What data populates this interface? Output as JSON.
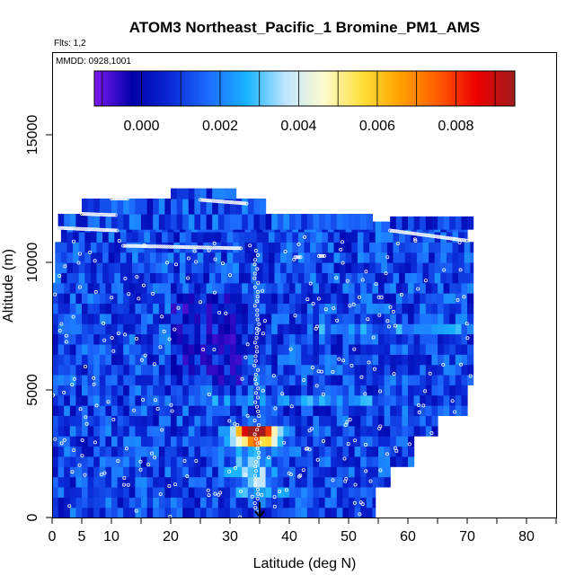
{
  "chart_data": {
    "type": "heatmap",
    "title": "ATOM3 Northeast_Pacific_1 Bromine_PM1_AMS",
    "flights_label": "Flts: 1,2",
    "dates_label": "MMDD: 0928,1001",
    "xlabel": "Latitude (deg N)",
    "ylabel": "Altitude (m)",
    "xlim": [
      0,
      85
    ],
    "ylim": [
      0,
      17000
    ],
    "x_ticks": [
      0,
      5,
      10,
      20,
      30,
      40,
      50,
      60,
      70,
      80
    ],
    "x_tick_labels": [
      "0",
      "5",
      "10",
      "20",
      "30",
      "40",
      "50",
      "60",
      "70",
      "80"
    ],
    "y_ticks": [
      0,
      5000,
      10000,
      15000
    ],
    "y_tick_labels": [
      "0",
      "5000",
      "10000",
      "15000"
    ],
    "colorbar": {
      "range": [
        -0.0012,
        0.0095
      ],
      "ticks": [
        0.0,
        0.002,
        0.004,
        0.006,
        0.008
      ],
      "tick_labels": [
        "0.000",
        "0.002",
        "0.004",
        "0.006",
        "0.008"
      ],
      "colors": [
        "#7d1aef",
        "#0000aa",
        "#0a2ad6",
        "#1e6cff",
        "#18b4ff",
        "#bfe6ff",
        "#fffbd0",
        "#ffe03b",
        "#ffa200",
        "#ff5a00",
        "#ee0000",
        "#a01c1c"
      ]
    },
    "marker_latitude": 35,
    "grid": false,
    "legend": "colorbar-top"
  },
  "colors": {
    "background": "#ffffff",
    "frame": "#000000",
    "sample_points": "#ffffff"
  }
}
